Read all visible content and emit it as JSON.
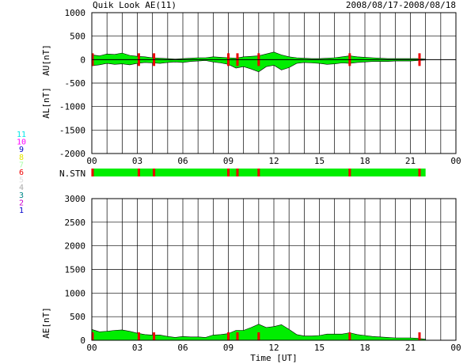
{
  "header": {
    "title": "Quik Look AE(11)",
    "date_range": "2008/08/17-2008/08/18"
  },
  "station_legend": [
    {
      "label": "11",
      "color": "#00e6e6"
    },
    {
      "label": "10",
      "color": "#ff00ff"
    },
    {
      "label": "9",
      "color": "#0000cc"
    },
    {
      "label": "8",
      "color": "#e6e600"
    },
    {
      "label": "7",
      "color": "#aaffaa"
    },
    {
      "label": "6",
      "color": "#ee0000"
    },
    {
      "label": "5",
      "color": "#dddddd"
    },
    {
      "label": "4",
      "color": "#aaaaaa"
    },
    {
      "label": "3",
      "color": "#008888"
    },
    {
      "label": "2",
      "color": "#cc00cc"
    },
    {
      "label": "1",
      "color": "#0000cc"
    }
  ],
  "chart_data": [
    {
      "type": "area",
      "panel": "AU/AL",
      "ylabel_top": "AU[nT]",
      "ylabel_bottom": "AL[nT]",
      "ylim": [
        -2000,
        1000
      ],
      "yticks": [
        "1000",
        "500",
        "0",
        "-500",
        "-1000",
        "-1500",
        "-2000"
      ],
      "xlim": [
        0,
        24
      ],
      "xticks": [
        "00",
        "03",
        "06",
        "09",
        "12",
        "15",
        "18",
        "21",
        "00"
      ],
      "grid": true,
      "series": [
        {
          "x": [
            0,
            0.5,
            1,
            1.5,
            2,
            2.5,
            3,
            3.5,
            4,
            4.5,
            5,
            5.5,
            6,
            6.5,
            7,
            7.5,
            8,
            8.5,
            9,
            9.5,
            10,
            10.5,
            11,
            11.5,
            12,
            12.5,
            13,
            13.5,
            14,
            14.5,
            15,
            15.5,
            16,
            16.5,
            17,
            17.5,
            18,
            18.5,
            19,
            19.5,
            20,
            20.5,
            21,
            21.5,
            22
          ],
          "au": [
            100,
            80,
            120,
            110,
            140,
            90,
            70,
            60,
            40,
            30,
            20,
            10,
            20,
            30,
            40,
            40,
            60,
            50,
            40,
            30,
            60,
            70,
            80,
            120,
            160,
            100,
            60,
            40,
            30,
            20,
            20,
            30,
            40,
            60,
            80,
            60,
            50,
            40,
            30,
            20,
            20,
            20,
            20,
            20,
            10
          ],
          "al": [
            -130,
            -110,
            -80,
            -100,
            -90,
            -110,
            -80,
            -60,
            -70,
            -80,
            -60,
            -50,
            -60,
            -40,
            -30,
            -20,
            -50,
            -70,
            -100,
            -180,
            -150,
            -200,
            -260,
            -150,
            -120,
            -220,
            -170,
            -80,
            -60,
            -70,
            -80,
            -100,
            -90,
            -70,
            -80,
            -60,
            -50,
            -40,
            -40,
            -40,
            -30,
            -30,
            -30,
            -20,
            -10
          ]
        }
      ]
    },
    {
      "type": "bar",
      "panel": "N.STN",
      "label": "N.STN",
      "xlim": [
        0,
        24
      ],
      "red_markers": [
        0.05,
        3.1,
        4.1,
        9.0,
        9.6,
        11.0,
        17.0,
        21.6
      ]
    },
    {
      "type": "area",
      "panel": "AE",
      "ylabel": "AE[nT]",
      "xlabel": "Time [UT]",
      "ylim": [
        0,
        3000
      ],
      "yticks": [
        "3000",
        "2500",
        "2000",
        "1500",
        "1000",
        "500",
        "0"
      ],
      "xlim": [
        0,
        24
      ],
      "xticks": [
        "00",
        "03",
        "06",
        "09",
        "12",
        "15",
        "18",
        "21",
        "00"
      ],
      "grid": true,
      "series": [
        {
          "x": [
            0,
            0.5,
            1,
            1.5,
            2,
            2.5,
            3,
            3.5,
            4,
            4.5,
            5,
            5.5,
            6,
            6.5,
            7,
            7.5,
            8,
            8.5,
            9,
            9.5,
            10,
            10.5,
            11,
            11.5,
            12,
            12.5,
            13,
            13.5,
            14,
            14.5,
            15,
            15.5,
            16,
            16.5,
            17,
            17.5,
            18,
            18.5,
            19,
            19.5,
            20,
            20.5,
            21,
            21.5,
            22
          ],
          "ae": [
            230,
            180,
            190,
            210,
            220,
            190,
            150,
            120,
            110,
            110,
            80,
            60,
            80,
            70,
            70,
            60,
            110,
            120,
            140,
            210,
            210,
            270,
            340,
            270,
            290,
            330,
            230,
            120,
            90,
            90,
            100,
            130,
            130,
            130,
            160,
            120,
            100,
            80,
            70,
            60,
            50,
            50,
            50,
            40,
            20
          ]
        }
      ]
    }
  ]
}
